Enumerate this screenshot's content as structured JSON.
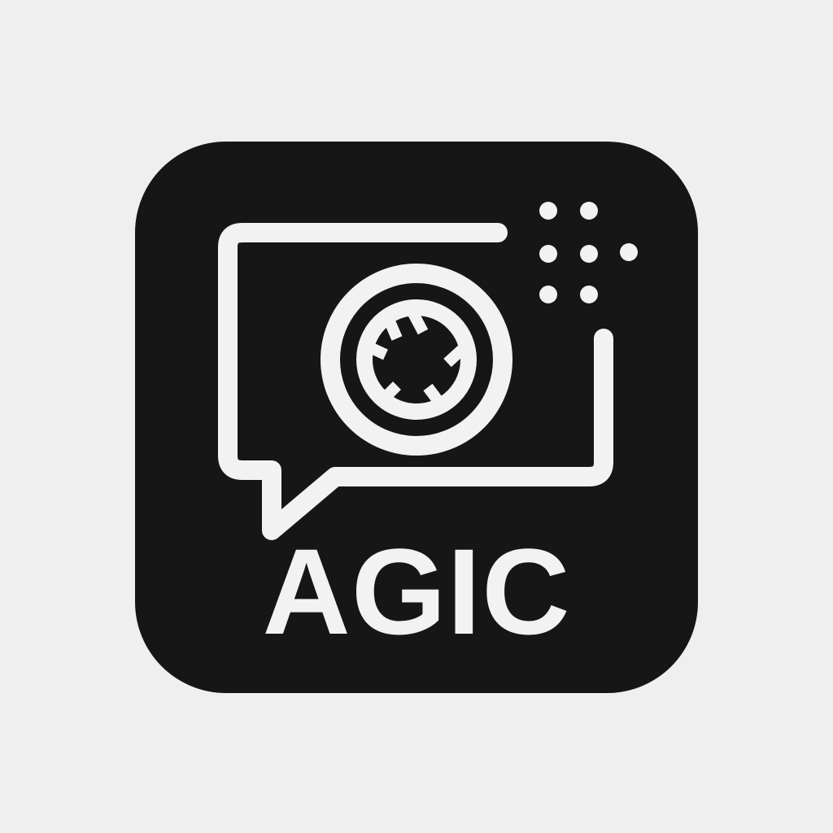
{
  "logo": {
    "wordmark": "AGIC",
    "icon_name": "chat-bubble-camera-aperture-icon",
    "colors": {
      "background": "#efefef",
      "tile": "#161616",
      "foreground": "#f2f2f2"
    }
  }
}
